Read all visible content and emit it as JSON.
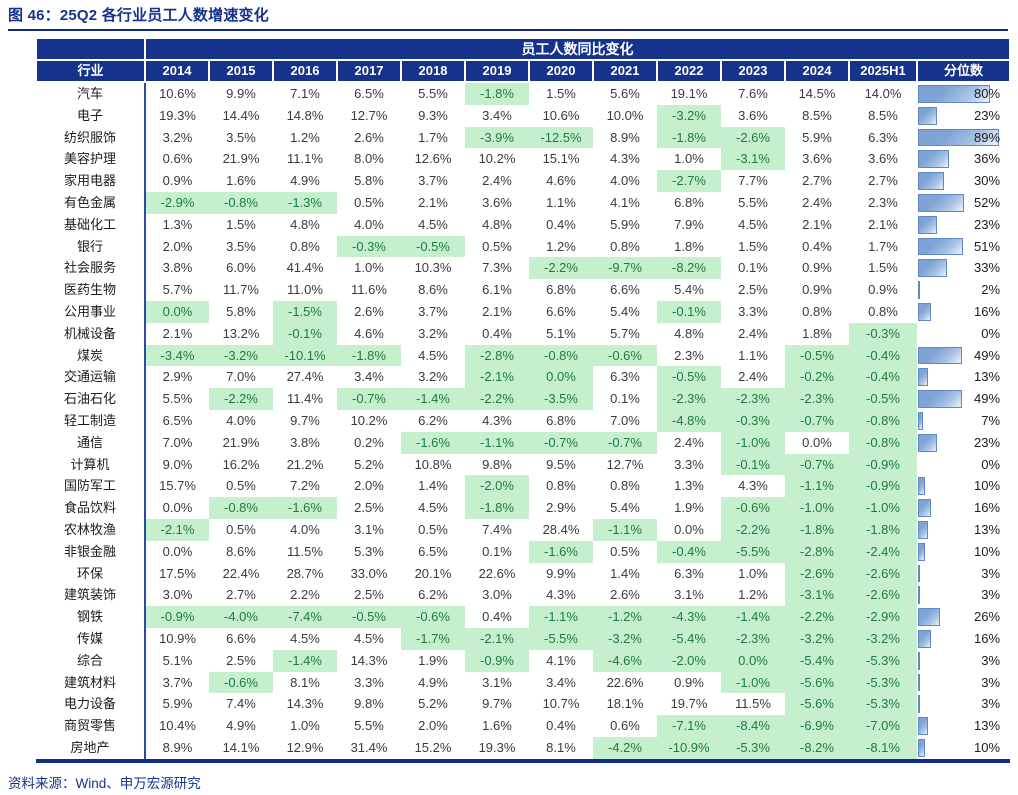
{
  "figure": {
    "caption": "图 46：25Q2 各行业员工人数增速变化",
    "source": "资料来源：Wind、申万宏源研究"
  },
  "colors": {
    "header_bg": "#15338c",
    "title_text": "#15338c",
    "green_bg": "#c6efce",
    "green_text": "#1f7b3c",
    "bar_fill": "#7ea3d4",
    "bar_border": "#5e87c3",
    "table_bottom_border": "#12307f"
  },
  "chart_data": {
    "type": "table",
    "title": "员工人数同比变化",
    "caption": "图 46：25Q2 各行业员工人数增速变化",
    "columns": [
      "行业",
      "2014",
      "2015",
      "2016",
      "2017",
      "2018",
      "2019",
      "2020",
      "2021",
      "2022",
      "2023",
      "2024",
      "2025H1",
      "分位数"
    ],
    "percentile_column": "分位数",
    "note_green_means": "negative-or-zero growth highlighted",
    "rows": [
      {
        "industry": "汽车",
        "values": [
          "10.6%",
          "9.9%",
          "7.1%",
          "6.5%",
          "5.5%",
          "-1.8%",
          "1.5%",
          "5.6%",
          "19.1%",
          "7.6%",
          "14.5%",
          "14.0%"
        ],
        "green": [
          5
        ],
        "percentile": 80
      },
      {
        "industry": "电子",
        "values": [
          "19.3%",
          "14.4%",
          "14.8%",
          "12.7%",
          "9.3%",
          "3.4%",
          "10.6%",
          "10.0%",
          "-3.2%",
          "3.6%",
          "8.5%",
          "8.5%"
        ],
        "green": [
          8
        ],
        "percentile": 23
      },
      {
        "industry": "纺织服饰",
        "values": [
          "3.2%",
          "3.5%",
          "1.2%",
          "2.6%",
          "1.7%",
          "-3.9%",
          "-12.5%",
          "8.9%",
          "-1.8%",
          "-2.6%",
          "5.9%",
          "6.3%"
        ],
        "green": [
          5,
          6,
          8,
          9
        ],
        "percentile": 89
      },
      {
        "industry": "美容护理",
        "values": [
          "0.6%",
          "21.9%",
          "11.1%",
          "8.0%",
          "12.6%",
          "10.2%",
          "15.1%",
          "4.3%",
          "1.0%",
          "-3.1%",
          "3.6%",
          "3.6%"
        ],
        "green": [
          9
        ],
        "percentile": 36
      },
      {
        "industry": "家用电器",
        "values": [
          "0.9%",
          "1.6%",
          "4.9%",
          "5.8%",
          "3.7%",
          "2.4%",
          "4.6%",
          "4.0%",
          "-2.7%",
          "7.7%",
          "2.7%",
          "2.7%"
        ],
        "green": [
          8
        ],
        "percentile": 30
      },
      {
        "industry": "有色金属",
        "values": [
          "-2.9%",
          "-0.8%",
          "-1.3%",
          "0.5%",
          "2.1%",
          "3.6%",
          "1.1%",
          "4.1%",
          "6.8%",
          "5.5%",
          "2.4%",
          "2.3%"
        ],
        "green": [
          0,
          1,
          2
        ],
        "percentile": 52
      },
      {
        "industry": "基础化工",
        "values": [
          "1.3%",
          "1.5%",
          "4.8%",
          "4.0%",
          "4.5%",
          "4.8%",
          "0.4%",
          "5.9%",
          "7.9%",
          "4.5%",
          "2.1%",
          "2.1%"
        ],
        "green": [],
        "percentile": 23
      },
      {
        "industry": "银行",
        "values": [
          "2.0%",
          "3.5%",
          "0.8%",
          "-0.3%",
          "-0.5%",
          "0.5%",
          "1.2%",
          "0.8%",
          "1.8%",
          "1.5%",
          "0.4%",
          "1.7%"
        ],
        "green": [
          3,
          4
        ],
        "percentile": 51
      },
      {
        "industry": "社会服务",
        "values": [
          "3.8%",
          "6.0%",
          "41.4%",
          "1.0%",
          "10.3%",
          "7.3%",
          "-2.2%",
          "-9.7%",
          "-8.2%",
          "0.1%",
          "0.9%",
          "1.5%"
        ],
        "green": [
          6,
          7,
          8
        ],
        "percentile": 33
      },
      {
        "industry": "医药生物",
        "values": [
          "5.7%",
          "11.7%",
          "11.0%",
          "11.6%",
          "8.6%",
          "6.1%",
          "6.8%",
          "6.6%",
          "5.4%",
          "2.5%",
          "0.9%",
          "0.9%"
        ],
        "green": [],
        "percentile": 2
      },
      {
        "industry": "公用事业",
        "values": [
          "0.0%",
          "5.8%",
          "-1.5%",
          "2.6%",
          "3.7%",
          "2.1%",
          "6.6%",
          "5.4%",
          "-0.1%",
          "3.3%",
          "0.8%",
          "0.8%"
        ],
        "green": [
          0,
          2,
          8
        ],
        "percentile": 16
      },
      {
        "industry": "机械设备",
        "values": [
          "2.1%",
          "13.2%",
          "-0.1%",
          "4.6%",
          "3.2%",
          "0.4%",
          "5.1%",
          "5.7%",
          "4.8%",
          "2.4%",
          "1.8%",
          "-0.3%"
        ],
        "green": [
          2,
          11
        ],
        "percentile": 0
      },
      {
        "industry": "煤炭",
        "values": [
          "-3.4%",
          "-3.2%",
          "-10.1%",
          "-1.8%",
          "4.5%",
          "-2.8%",
          "-0.8%",
          "-0.6%",
          "2.3%",
          "1.1%",
          "-0.5%",
          "-0.4%"
        ],
        "green": [
          0,
          1,
          2,
          3,
          5,
          6,
          7,
          10,
          11
        ],
        "percentile": 49
      },
      {
        "industry": "交通运输",
        "values": [
          "2.9%",
          "7.0%",
          "27.4%",
          "3.4%",
          "3.2%",
          "-2.1%",
          "0.0%",
          "6.3%",
          "-0.5%",
          "2.4%",
          "-0.2%",
          "-0.4%"
        ],
        "green": [
          5,
          6,
          8,
          10,
          11
        ],
        "percentile": 13
      },
      {
        "industry": "石油石化",
        "values": [
          "5.5%",
          "-2.2%",
          "11.4%",
          "-0.7%",
          "-1.4%",
          "-2.2%",
          "-3.5%",
          "0.1%",
          "-2.3%",
          "-2.3%",
          "-2.3%",
          "-0.5%"
        ],
        "green": [
          1,
          3,
          4,
          5,
          6,
          8,
          9,
          10,
          11
        ],
        "percentile": 49
      },
      {
        "industry": "轻工制造",
        "values": [
          "6.5%",
          "4.0%",
          "9.7%",
          "10.2%",
          "6.2%",
          "4.3%",
          "6.8%",
          "7.0%",
          "-4.8%",
          "-0.3%",
          "-0.7%",
          "-0.8%"
        ],
        "green": [
          8,
          9,
          10,
          11
        ],
        "percentile": 7
      },
      {
        "industry": "通信",
        "values": [
          "7.0%",
          "21.9%",
          "3.8%",
          "0.2%",
          "-1.6%",
          "-1.1%",
          "-0.7%",
          "-0.7%",
          "2.4%",
          "-1.0%",
          "0.0%",
          "-0.8%"
        ],
        "green": [
          4,
          5,
          6,
          7,
          9,
          11
        ],
        "percentile": 23
      },
      {
        "industry": "计算机",
        "values": [
          "9.0%",
          "16.2%",
          "21.2%",
          "5.2%",
          "10.8%",
          "9.8%",
          "9.5%",
          "12.7%",
          "3.3%",
          "-0.1%",
          "-0.7%",
          "-0.9%"
        ],
        "green": [
          9,
          10,
          11
        ],
        "percentile": 0
      },
      {
        "industry": "国防军工",
        "values": [
          "15.7%",
          "0.5%",
          "7.2%",
          "2.0%",
          "1.4%",
          "-2.0%",
          "0.8%",
          "0.8%",
          "1.3%",
          "4.3%",
          "-1.1%",
          "-0.9%"
        ],
        "green": [
          5,
          10,
          11
        ],
        "percentile": 10
      },
      {
        "industry": "食品饮料",
        "values": [
          "0.0%",
          "-0.8%",
          "-1.6%",
          "2.5%",
          "4.5%",
          "-1.8%",
          "2.9%",
          "5.4%",
          "1.9%",
          "-0.6%",
          "-1.0%",
          "-1.0%"
        ],
        "green": [
          1,
          2,
          5,
          9,
          10,
          11
        ],
        "percentile": 16
      },
      {
        "industry": "农林牧渔",
        "values": [
          "-2.1%",
          "0.5%",
          "4.0%",
          "3.1%",
          "0.5%",
          "7.4%",
          "28.4%",
          "-1.1%",
          "0.0%",
          "-2.2%",
          "-1.8%",
          "-1.8%"
        ],
        "green": [
          0,
          7,
          9,
          10,
          11
        ],
        "percentile": 13
      },
      {
        "industry": "非银金融",
        "values": [
          "0.0%",
          "8.6%",
          "11.5%",
          "5.3%",
          "6.5%",
          "0.1%",
          "-1.6%",
          "0.5%",
          "-0.4%",
          "-5.5%",
          "-2.8%",
          "-2.4%"
        ],
        "green": [
          6,
          8,
          9,
          10,
          11
        ],
        "percentile": 10
      },
      {
        "industry": "环保",
        "values": [
          "17.5%",
          "22.4%",
          "28.7%",
          "33.0%",
          "20.1%",
          "22.6%",
          "9.9%",
          "1.4%",
          "6.3%",
          "1.0%",
          "-2.6%",
          "-2.6%"
        ],
        "green": [
          10,
          11
        ],
        "percentile": 3
      },
      {
        "industry": "建筑装饰",
        "values": [
          "3.0%",
          "2.7%",
          "2.2%",
          "2.5%",
          "6.2%",
          "3.0%",
          "4.3%",
          "2.6%",
          "3.1%",
          "1.2%",
          "-3.1%",
          "-2.6%"
        ],
        "green": [
          10,
          11
        ],
        "percentile": 3
      },
      {
        "industry": "钢铁",
        "values": [
          "-0.9%",
          "-4.0%",
          "-7.4%",
          "-0.5%",
          "-0.6%",
          "0.4%",
          "-1.1%",
          "-1.2%",
          "-4.3%",
          "-1.4%",
          "-2.2%",
          "-2.9%"
        ],
        "green": [
          0,
          1,
          2,
          3,
          4,
          6,
          7,
          8,
          9,
          10,
          11
        ],
        "percentile": 26
      },
      {
        "industry": "传媒",
        "values": [
          "10.9%",
          "6.6%",
          "4.5%",
          "4.5%",
          "-1.7%",
          "-2.1%",
          "-5.5%",
          "-3.2%",
          "-5.4%",
          "-2.3%",
          "-3.2%",
          "-3.2%"
        ],
        "green": [
          4,
          5,
          6,
          7,
          8,
          9,
          10,
          11
        ],
        "percentile": 16
      },
      {
        "industry": "综合",
        "values": [
          "5.1%",
          "2.5%",
          "-1.4%",
          "14.3%",
          "1.9%",
          "-0.9%",
          "4.1%",
          "-4.6%",
          "-2.0%",
          "0.0%",
          "-5.4%",
          "-5.3%"
        ],
        "green": [
          2,
          5,
          7,
          8,
          9,
          10,
          11
        ],
        "percentile": 3
      },
      {
        "industry": "建筑材料",
        "values": [
          "3.7%",
          "-0.6%",
          "8.1%",
          "3.3%",
          "4.9%",
          "3.1%",
          "3.4%",
          "22.6%",
          "0.9%",
          "-1.0%",
          "-5.6%",
          "-5.3%"
        ],
        "green": [
          1,
          9,
          10,
          11
        ],
        "percentile": 3
      },
      {
        "industry": "电力设备",
        "values": [
          "5.9%",
          "7.4%",
          "14.3%",
          "9.8%",
          "5.2%",
          "9.7%",
          "10.7%",
          "18.1%",
          "19.7%",
          "11.5%",
          "-5.6%",
          "-5.3%"
        ],
        "green": [
          10,
          11
        ],
        "percentile": 3
      },
      {
        "industry": "商贸零售",
        "values": [
          "10.4%",
          "4.9%",
          "1.0%",
          "5.5%",
          "2.0%",
          "1.6%",
          "0.4%",
          "0.6%",
          "-7.1%",
          "-8.4%",
          "-6.9%",
          "-7.0%"
        ],
        "green": [
          8,
          9,
          10,
          11
        ],
        "percentile": 13
      },
      {
        "industry": "房地产",
        "values": [
          "8.9%",
          "14.1%",
          "12.9%",
          "31.4%",
          "15.2%",
          "19.3%",
          "8.1%",
          "-4.2%",
          "-10.9%",
          "-5.3%",
          "-8.2%",
          "-8.1%"
        ],
        "green": [
          7,
          8,
          9,
          10,
          11
        ],
        "percentile": 10
      }
    ]
  }
}
